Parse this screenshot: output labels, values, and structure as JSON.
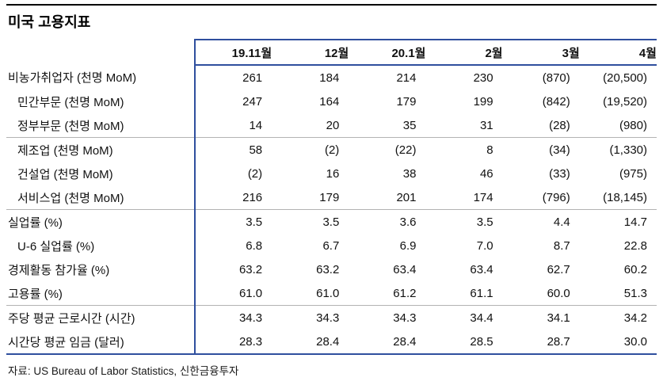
{
  "title": "미국 고용지표",
  "source": "자료: US Bureau of Labor Statistics, 신한금융투자",
  "colors": {
    "accent_line": "#2f4f9e",
    "separator_line": "#b3b3b3",
    "top_rule": "#000000"
  },
  "table": {
    "columns": [
      "19.11월",
      "12월",
      "20.1월",
      "2월",
      "3월",
      "4월"
    ],
    "rows": [
      {
        "label": "비농가취업자 (천명 MoM)",
        "indent": 0,
        "separator_before": false,
        "values": [
          "261",
          "184",
          "214",
          "230",
          "(870)",
          "(20,500)"
        ]
      },
      {
        "label": "민간부문 (천명 MoM)",
        "indent": 1,
        "separator_before": false,
        "values": [
          "247",
          "164",
          "179",
          "199",
          "(842)",
          "(19,520)"
        ]
      },
      {
        "label": "정부부문 (천명 MoM)",
        "indent": 1,
        "separator_before": false,
        "values": [
          "14",
          "20",
          "35",
          "31",
          "(28)",
          "(980)"
        ]
      },
      {
        "label": "제조업 (천명 MoM)",
        "indent": 1,
        "separator_before": true,
        "values": [
          "58",
          "(2)",
          "(22)",
          "8",
          "(34)",
          "(1,330)"
        ]
      },
      {
        "label": "건설업 (천명 MoM)",
        "indent": 1,
        "separator_before": false,
        "values": [
          "(2)",
          "16",
          "38",
          "46",
          "(33)",
          "(975)"
        ]
      },
      {
        "label": "서비스업 (천명 MoM)",
        "indent": 1,
        "separator_before": false,
        "values": [
          "216",
          "179",
          "201",
          "174",
          "(796)",
          "(18,145)"
        ]
      },
      {
        "label": "실업률 (%)",
        "indent": 0,
        "separator_before": true,
        "values": [
          "3.5",
          "3.5",
          "3.6",
          "3.5",
          "4.4",
          "14.7"
        ]
      },
      {
        "label": "U-6 실업률 (%)",
        "indent": 1,
        "separator_before": false,
        "values": [
          "6.8",
          "6.7",
          "6.9",
          "7.0",
          "8.7",
          "22.8"
        ]
      },
      {
        "label": "경제활동 참가율 (%)",
        "indent": 0,
        "separator_before": false,
        "values": [
          "63.2",
          "63.2",
          "63.4",
          "63.4",
          "62.7",
          "60.2"
        ]
      },
      {
        "label": "고용률 (%)",
        "indent": 0,
        "separator_before": false,
        "values": [
          "61.0",
          "61.0",
          "61.2",
          "61.1",
          "60.0",
          "51.3"
        ]
      },
      {
        "label": "주당 평균 근로시간 (시간)",
        "indent": 0,
        "separator_before": true,
        "values": [
          "34.3",
          "34.3",
          "34.3",
          "34.4",
          "34.1",
          "34.2"
        ]
      },
      {
        "label": "시간당 평균 임금 (달러)",
        "indent": 0,
        "separator_before": false,
        "values": [
          "28.3",
          "28.4",
          "28.4",
          "28.5",
          "28.7",
          "30.0"
        ]
      }
    ]
  }
}
